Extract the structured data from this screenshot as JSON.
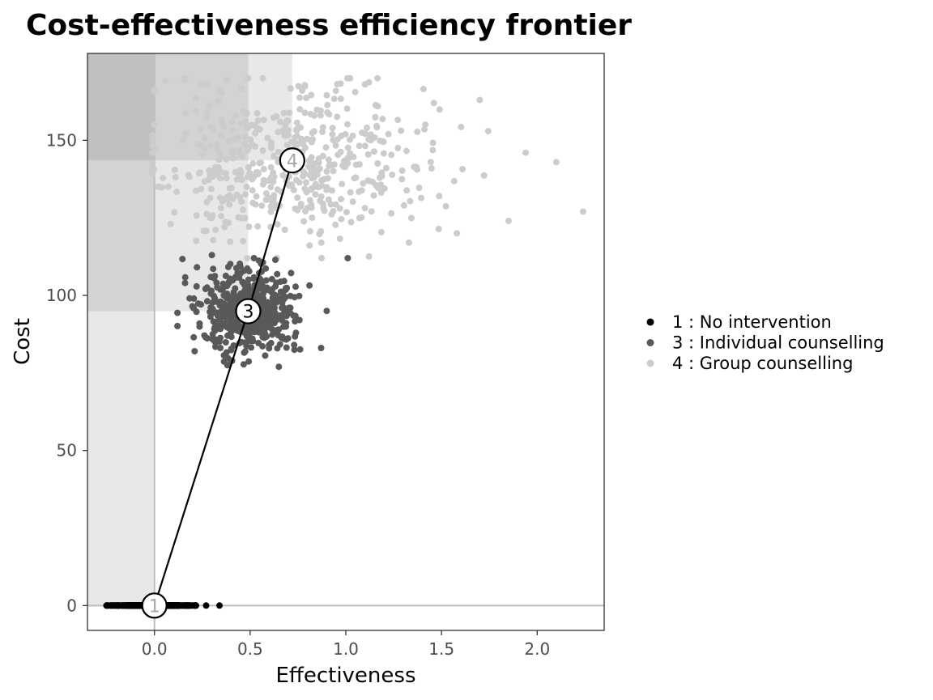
{
  "chart_data": {
    "type": "scatter",
    "title": "Cost-effectiveness efficiency frontier",
    "xlabel": "Effectiveness",
    "ylabel": "Cost",
    "xlim": [
      -0.35,
      2.35
    ],
    "ylim": [
      -8,
      178
    ],
    "x_ticks": [
      0.0,
      0.5,
      1.0,
      1.5,
      2.0
    ],
    "x_tick_labels": [
      "0.0",
      "0.5",
      "1.0",
      "1.5",
      "2.0"
    ],
    "y_ticks": [
      0,
      50,
      100,
      150
    ],
    "y_tick_labels": [
      "0",
      "50",
      "100",
      "150"
    ],
    "grid": false,
    "legend_placement": "right",
    "series": [
      {
        "name": "1 : No intervention",
        "node_label": "1",
        "color": "#000000",
        "label_color": "#a6a6a6",
        "mean": {
          "x": 0.0,
          "y": 0.0
        },
        "spread": {
          "sx": 0.09,
          "sy": 0.0
        },
        "n_points": 500,
        "sample_points": [
          [
            -0.24,
            0
          ],
          [
            -0.19,
            0
          ],
          [
            -0.12,
            0
          ],
          [
            -0.06,
            0
          ],
          [
            0.05,
            0
          ],
          [
            0.12,
            0
          ],
          [
            0.2,
            0
          ],
          [
            0.27,
            0
          ],
          [
            0.34,
            0
          ]
        ]
      },
      {
        "name": "3 : Individual counselling",
        "node_label": "3",
        "color": "#595959",
        "label_color": "#000000",
        "mean": {
          "x": 0.49,
          "y": 94.9
        },
        "spread": {
          "sx": 0.12,
          "sy": 7.0
        },
        "n_points": 500,
        "sample_points": [
          [
            0.16,
            104
          ],
          [
            0.21,
            82
          ],
          [
            0.3,
            113
          ],
          [
            0.52,
            112
          ],
          [
            0.73,
            84
          ],
          [
            0.9,
            95
          ],
          [
            1.01,
            112
          ],
          [
            0.65,
            77
          ],
          [
            0.4,
            79
          ]
        ]
      },
      {
        "name": "4 : Group counselling",
        "node_label": "4",
        "color": "#cccccc",
        "label_color": "#a6a6a6",
        "mean": {
          "x": 0.72,
          "y": 143.5
        },
        "spread": {
          "sx": 0.35,
          "sy": 12.0
        },
        "n_points": 500,
        "sample_points": [
          [
            0.0,
            166
          ],
          [
            0.02,
            135
          ],
          [
            0.3,
            125
          ],
          [
            1.1,
            168
          ],
          [
            1.46,
            162
          ],
          [
            1.7,
            163
          ],
          [
            1.94,
            146
          ],
          [
            2.1,
            143
          ],
          [
            2.24,
            127
          ],
          [
            1.85,
            124
          ],
          [
            1.58,
            120
          ],
          [
            1.33,
            117
          ]
        ]
      }
    ],
    "frontier": {
      "points": [
        [
          0.0,
          0.0
        ],
        [
          0.49,
          94.9
        ],
        [
          0.72,
          143.5
        ]
      ],
      "labels": [
        "1",
        "3",
        "4"
      ]
    },
    "dominance_regions": [
      {
        "x_max": 0.0,
        "y_min": 0.0,
        "shade": "#e6e6e6"
      },
      {
        "x_max": 0.72,
        "y_min": 143.5,
        "shade": "#e6e6e6"
      },
      {
        "x_max": 0.49,
        "y_min": 94.9,
        "shade": "#e6e6e6"
      }
    ],
    "reference_lines": {
      "x": 0.0,
      "y": 0.0,
      "color": "#bdbdbd"
    }
  }
}
